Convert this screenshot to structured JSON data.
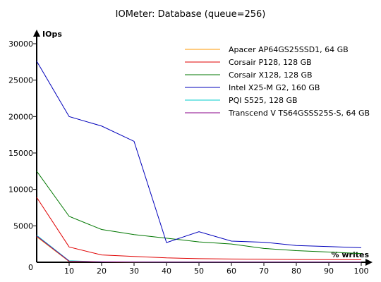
{
  "chart_data": {
    "type": "line",
    "title": "IOMeter: Database (queue=256)",
    "xlabel": "% writes",
    "ylabel": "IOps",
    "x": [
      0,
      10,
      20,
      30,
      40,
      50,
      60,
      70,
      80,
      90,
      100
    ],
    "xlim": [
      0,
      100
    ],
    "ylim": [
      0,
      30000
    ],
    "xticks": [
      "0",
      "10",
      "20",
      "30",
      "40",
      "50",
      "60",
      "70",
      "80",
      "90",
      "100"
    ],
    "yticks": [
      "0",
      "5000",
      "10000",
      "15000",
      "20000",
      "25000",
      "30000"
    ],
    "grid": false,
    "legend_position": "top-right",
    "series": [
      {
        "name": "Apacer AP64GS25SSD1, 64 GB",
        "color": "#ff9900",
        "values": [
          3500,
          100,
          50,
          30,
          30,
          20,
          20,
          20,
          20,
          20,
          20
        ]
      },
      {
        "name": "Corsair P128, 128 GB",
        "color": "#e00000",
        "values": [
          8900,
          2100,
          1000,
          800,
          600,
          500,
          450,
          420,
          380,
          360,
          340
        ]
      },
      {
        "name": "Corsair X128, 128 GB",
        "color": "#007700",
        "values": [
          12500,
          6300,
          4500,
          3800,
          3300,
          2800,
          2500,
          1900,
          1600,
          1400,
          1200
        ]
      },
      {
        "name": "Intel X25-M G2, 160 GB",
        "color": "#0000bb",
        "values": [
          27600,
          20000,
          18700,
          16600,
          2700,
          4200,
          2900,
          2750,
          2300,
          2150,
          2000
        ]
      },
      {
        "name": "PQI S525, 128 GB",
        "color": "#00cccc",
        "values": [
          3700,
          200,
          60,
          40,
          30,
          20,
          20,
          20,
          20,
          20,
          20
        ]
      },
      {
        "name": "Transcend V TS64GSSS25S-S, 64 GB",
        "color": "#880088",
        "values": [
          3600,
          150,
          60,
          40,
          30,
          20,
          20,
          20,
          20,
          20,
          20
        ]
      }
    ]
  }
}
